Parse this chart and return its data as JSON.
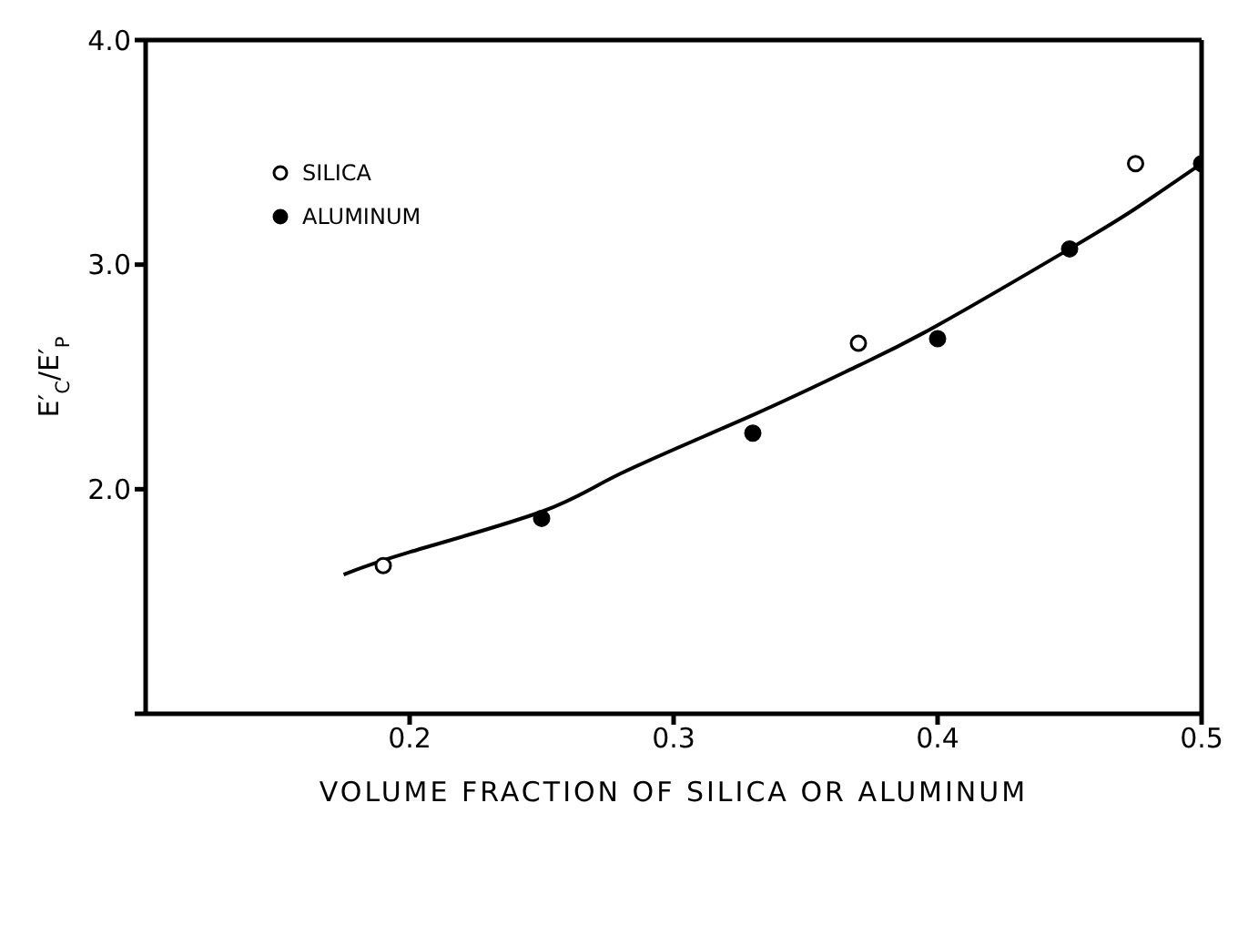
{
  "chart_data": {
    "type": "scatter",
    "xlabel": "VOLUME FRACTION OF SILICA OR ALUMINUM",
    "ylabel": "E′$_{C}$/E′$_{P}$",
    "xlim": [
      0.1,
      0.5
    ],
    "xticks": [
      0.2,
      0.3,
      0.4,
      0.5
    ],
    "ylim": [
      1.0,
      4.0
    ],
    "yticks": [
      {
        "value": 1.0,
        "label": null
      },
      {
        "value": 2,
        "label": "2.0"
      },
      {
        "value": 3,
        "label": "3.0"
      },
      {
        "value": 4,
        "label": "4.0"
      }
    ],
    "series": [
      {
        "name": "SILICA",
        "color": "#000000",
        "marker": "circle",
        "x": [
          0.19,
          0.37,
          0.475
        ],
        "values": [
          1.66,
          2.65,
          3.45
        ]
      },
      {
        "name": "ALUMINUM",
        "color": "#000000",
        "marker": "circle",
        "x": [
          0.25,
          0.33,
          0.4,
          0.45,
          0.5
        ],
        "values": [
          1.87,
          2.25,
          2.67,
          3.07,
          3.45
        ]
      },
      {
        "type": "line",
        "color": "#000000",
        "marker": "none",
        "x": [
          0.175,
          0.2,
          0.25,
          0.28,
          0.33,
          0.37,
          0.4,
          0.45,
          0.475,
          0.5
        ],
        "values": [
          1.62,
          1.72,
          1.9,
          2.07,
          2.33,
          2.55,
          2.73,
          3.07,
          3.25,
          3.45
        ]
      }
    ],
    "legend": "top left",
    "grid": false
  }
}
